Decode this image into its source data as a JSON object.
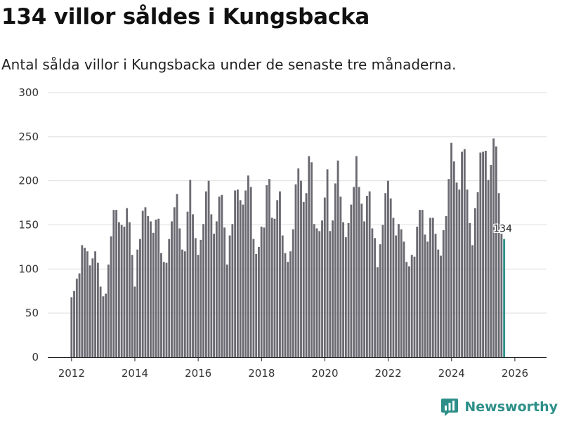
{
  "header": {
    "title": "134 villor såldes i Kungsbacka",
    "subtitle": "Antal sålda villor i Kungsbacka under de senaste tre månaderna."
  },
  "brand": {
    "name": "Newsworthy",
    "color": "#2e8f89"
  },
  "chart_data": {
    "type": "bar",
    "title": "134 villor såldes i Kungsbacka",
    "subtitle": "Antal sålda villor i Kungsbacka under de senaste tre månaderna.",
    "xlabel": "",
    "ylabel": "",
    "ylim": [
      0,
      300
    ],
    "yticks": [
      0,
      50,
      100,
      150,
      200,
      250,
      300
    ],
    "xticks": [
      2012,
      2014,
      2016,
      2018,
      2020,
      2022,
      2024,
      2026
    ],
    "x_start": 2012.0,
    "x_step": 0.0833,
    "x_range": [
      2011.25,
      2027.0
    ],
    "grid": true,
    "bar_color": "#6b6a72",
    "highlight_color": "#2e8f89",
    "highlight_label": "134",
    "values": [
      68,
      75,
      89,
      95,
      127,
      124,
      120,
      104,
      112,
      120,
      107,
      80,
      69,
      72,
      105,
      137,
      167,
      167,
      153,
      150,
      148,
      169,
      153,
      116,
      80,
      122,
      134,
      166,
      170,
      160,
      154,
      141,
      156,
      157,
      118,
      108,
      107,
      134,
      154,
      170,
      185,
      146,
      122,
      120,
      165,
      201,
      162,
      135,
      116,
      133,
      151,
      188,
      200,
      162,
      140,
      154,
      182,
      184,
      147,
      105,
      138,
      151,
      189,
      190,
      178,
      173,
      189,
      206,
      193,
      134,
      117,
      125,
      148,
      147,
      195,
      202,
      158,
      157,
      178,
      188,
      138,
      118,
      108,
      120,
      145,
      196,
      214,
      200,
      176,
      186,
      228,
      221,
      151,
      146,
      143,
      155,
      181,
      213,
      143,
      155,
      197,
      223,
      182,
      153,
      136,
      152,
      173,
      193,
      228,
      193,
      174,
      154,
      183,
      188,
      146,
      135,
      102,
      128,
      150,
      186,
      200,
      180,
      158,
      138,
      151,
      145,
      131,
      108,
      103,
      116,
      114,
      148,
      167,
      167,
      139,
      131,
      158,
      158,
      140,
      122,
      115,
      144,
      160,
      202,
      243,
      222,
      198,
      190,
      233,
      236,
      190,
      152,
      127,
      169,
      187,
      232,
      233,
      234,
      201,
      218,
      248,
      239,
      186,
      140,
      134
    ]
  }
}
